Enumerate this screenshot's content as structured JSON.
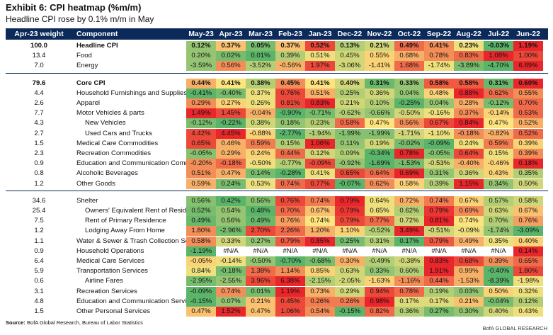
{
  "exhibit_title": "Exhibit 6: CPI heatmap (%m/m)",
  "subtitle": "Headline CPI rose by 0.1% m/m in May",
  "source_label": "Source:",
  "source_text": "BofA Global Research, Bureau of Labor Statistics",
  "brand": "BofA GLOBAL RESEARCH",
  "colors": {
    "header_bg": "#0b2a5a",
    "red": "#e8262b",
    "yellow": "#fde47f",
    "green": "#5ab46a"
  },
  "chart_data": {
    "type": "heatmap",
    "title": "CPI heatmap (%m/m)",
    "weight_header": "Apr-23 weight",
    "component_header": "Component",
    "columns": [
      "May-23",
      "Apr-23",
      "Mar-23",
      "Feb-23",
      "Jan-23",
      "Dec-22",
      "Nov-22",
      "Oct-22",
      "Sep-22",
      "Aug-22",
      "Jul-22",
      "Jun-22"
    ],
    "rows": [
      {
        "weight": "100.0",
        "name": "Headline CPI",
        "bold": true,
        "indent": 0,
        "values": [
          "0.12%",
          "0.37%",
          "0.05%",
          "0.37%",
          "0.52%",
          "0.13%",
          "0.21%",
          "0.49%",
          "0.41%",
          "0.23%",
          "-0.03%",
          "1.19%"
        ]
      },
      {
        "weight": "13.4",
        "name": "Food",
        "bold": false,
        "indent": 0,
        "values": [
          "0.20%",
          "0.02%",
          "0.01%",
          "0.39%",
          "0.51%",
          "0.45%",
          "0.55%",
          "0.68%",
          "0.78%",
          "0.83%",
          "1.08%",
          "1.00%"
        ]
      },
      {
        "weight": "7.0",
        "name": "Energy",
        "bold": false,
        "indent": 0,
        "values": [
          "-3.59%",
          "0.56%",
          "-3.52%",
          "-0.56%",
          "1.97%",
          "-3.06%",
          "-1.41%",
          "1.68%",
          "-1.74%",
          "-3.89%",
          "-4.70%",
          "6.89%"
        ]
      },
      {
        "weight": "79.6",
        "name": "Core CPI",
        "bold": true,
        "indent": 0,
        "gap": true,
        "values": [
          "0.44%",
          "0.41%",
          "0.38%",
          "0.45%",
          "0.41%",
          "0.40%",
          "0.31%",
          "0.33%",
          "0.58%",
          "0.58%",
          "0.31%",
          "0.60%"
        ]
      },
      {
        "weight": "4.4",
        "name": "Household Furnishings and Supplies",
        "bold": false,
        "indent": 0,
        "values": [
          "-0.41%",
          "-0.40%",
          "0.37%",
          "0.76%",
          "0.51%",
          "0.25%",
          "0.36%",
          "0.04%",
          "0.48%",
          "0.88%",
          "0.62%",
          "0.55%"
        ]
      },
      {
        "weight": "2.6",
        "name": "Apparel",
        "bold": false,
        "indent": 0,
        "values": [
          "0.29%",
          "0.27%",
          "0.26%",
          "0.81%",
          "0.83%",
          "0.21%",
          "0.10%",
          "-0.25%",
          "0.04%",
          "0.28%",
          "-0.12%",
          "0.70%"
        ]
      },
      {
        "weight": "7.7",
        "name": "Motor Vehicles & parts",
        "bold": false,
        "indent": 0,
        "values": [
          "1.49%",
          "1.45%",
          "-0.04%",
          "-0.90%",
          "-0.71%",
          "-0.62%",
          "-0.66%",
          "-0.50%",
          "-0.16%",
          "0.37%",
          "-0.14%",
          "0.53%"
        ]
      },
      {
        "weight": "4.3",
        "name": "New Vehicles",
        "bold": false,
        "indent": 1,
        "values": [
          "-0.12%",
          "-0.22%",
          "0.38%",
          "0.18%",
          "0.23%",
          "0.58%",
          "0.47%",
          "0.56%",
          "0.67%",
          "0.84%",
          "0.47%",
          "0.52%"
        ]
      },
      {
        "weight": "2.7",
        "name": "Used Cars and Trucks",
        "bold": false,
        "indent": 1,
        "values": [
          "4.42%",
          "4.45%",
          "-0.88%",
          "-2.77%",
          "-1.94%",
          "-1.99%",
          "-1.99%",
          "-1.71%",
          "-1.10%",
          "-0.18%",
          "-0.82%",
          "0.52%"
        ]
      },
      {
        "weight": "1.5",
        "name": "Medical Care Commodities",
        "bold": false,
        "indent": 0,
        "values": [
          "0.65%",
          "0.46%",
          "0.59%",
          "0.15%",
          "1.06%",
          "0.11%",
          "0.19%",
          "-0.02%",
          "-0.09%",
          "0.24%",
          "0.59%",
          "0.39%"
        ]
      },
      {
        "weight": "2.3",
        "name": "Recreation Commodities",
        "bold": false,
        "indent": 0,
        "values": [
          "-0.05%",
          "0.29%",
          "0.24%",
          "0.44%",
          "0.12%",
          "0.09%",
          "-0.34%",
          "0.78%",
          "-0.05%",
          "0.64%",
          "0.15%",
          "0.39%"
        ]
      },
      {
        "weight": "0.9",
        "name": "Education and Communication Commodities",
        "bold": false,
        "indent": 0,
        "values": [
          "-0.20%",
          "-0.18%",
          "-0.50%",
          "-0.77%",
          "-0.09%",
          "-0.92%",
          "-1.69%",
          "-1.53%",
          "-0.53%",
          "-0.40%",
          "-0.46%",
          "0.18%"
        ]
      },
      {
        "weight": "0.8",
        "name": "Alcoholic Beverages",
        "bold": false,
        "indent": 0,
        "values": [
          "0.51%",
          "0.47%",
          "0.14%",
          "-0.28%",
          "0.41%",
          "0.65%",
          "0.64%",
          "0.69%",
          "0.31%",
          "0.36%",
          "0.43%",
          "0.35%"
        ]
      },
      {
        "weight": "1.2",
        "name": "Other Goods",
        "bold": false,
        "indent": 0,
        "values": [
          "0.59%",
          "0.24%",
          "0.53%",
          "0.74%",
          "0.77%",
          "-0.07%",
          "0.62%",
          "0.58%",
          "0.39%",
          "1.15%",
          "0.34%",
          "0.50%"
        ]
      },
      {
        "weight": "34.6",
        "name": "Shelter",
        "bold": false,
        "indent": 0,
        "gap": true,
        "values": [
          "0.56%",
          "0.42%",
          "0.56%",
          "0.76%",
          "0.74%",
          "0.79%",
          "0.64%",
          "0.72%",
          "0.74%",
          "0.67%",
          "0.57%",
          "0.58%"
        ]
      },
      {
        "weight": "25.4",
        "name": "Owners' Equivalent Rent of Residences",
        "bold": false,
        "indent": 1,
        "values": [
          "0.52%",
          "0.54%",
          "0.48%",
          "0.70%",
          "0.67%",
          "0.79%",
          "0.65%",
          "0.62%",
          "0.79%",
          "0.69%",
          "0.63%",
          "0.67%"
        ]
      },
      {
        "weight": "7.5",
        "name": "Rent of Primary Residence",
        "bold": false,
        "indent": 1,
        "values": [
          "0.49%",
          "0.56%",
          "0.49%",
          "0.76%",
          "0.74%",
          "0.79%",
          "0.77%",
          "0.72%",
          "0.81%",
          "0.74%",
          "0.70%",
          "0.76%"
        ]
      },
      {
        "weight": "1.2",
        "name": "Lodging Away From Home",
        "bold": false,
        "indent": 1,
        "values": [
          "1.80%",
          "-2.96%",
          "2.70%",
          "2.26%",
          "1.20%",
          "1.10%",
          "-0.52%",
          "3.49%",
          "-0.51%",
          "-0.09%",
          "-1.74%",
          "-3.09%"
        ]
      },
      {
        "weight": "1.1",
        "name": "Water & Sewer & Trash Collection Services",
        "bold": false,
        "indent": 0,
        "values": [
          "0.58%",
          "0.33%",
          "0.27%",
          "0.79%",
          "0.85%",
          "0.25%",
          "0.31%",
          "0.17%",
          "0.79%",
          "0.49%",
          "0.35%",
          "0.40%"
        ]
      },
      {
        "weight": "0.9",
        "name": "Household Operations",
        "bold": false,
        "indent": 0,
        "values": [
          "-1.19%",
          "#N/A",
          "#N/A",
          "#N/A",
          "#N/A",
          "#N/A",
          "#N/A",
          "#N/A",
          "#N/A",
          "#N/A",
          "#N/A",
          "0.14%"
        ]
      },
      {
        "weight": "6.4",
        "name": "Medical Care Services",
        "bold": false,
        "indent": 0,
        "values": [
          "-0.05%",
          "-0.14%",
          "-0.50%",
          "-0.70%",
          "-0.68%",
          "0.30%",
          "-0.49%",
          "-0.38%",
          "0.83%",
          "0.68%",
          "0.39%",
          "0.65%"
        ]
      },
      {
        "weight": "5.9",
        "name": "Transportation Services",
        "bold": false,
        "indent": 0,
        "values": [
          "0.84%",
          "-0.18%",
          "1.38%",
          "1.14%",
          "0.85%",
          "0.63%",
          "0.33%",
          "0.60%",
          "1.91%",
          "0.99%",
          "-0.40%",
          "1.80%"
        ]
      },
      {
        "weight": "0.6",
        "name": "Airline Fares",
        "bold": false,
        "indent": 1,
        "values": [
          "-2.95%",
          "-2.55%",
          "3.96%",
          "6.38%",
          "-2.15%",
          "-2.05%",
          "-1.63%",
          "-1.16%",
          "0.44%",
          "-1.53%",
          "-8.39%",
          "-1.98%"
        ]
      },
      {
        "weight": "3.1",
        "name": "Recreation Services",
        "bold": false,
        "indent": 0,
        "values": [
          "-0.09%",
          "0.74%",
          "0.01%",
          "1.19%",
          "0.73%",
          "0.29%",
          "0.94%",
          "0.78%",
          "0.19%",
          "0.03%",
          "0.50%",
          "0.32%"
        ]
      },
      {
        "weight": "4.8",
        "name": "Education and Communication Services",
        "bold": false,
        "indent": 0,
        "values": [
          "-0.15%",
          "0.07%",
          "0.21%",
          "0.45%",
          "0.26%",
          "0.26%",
          "0.98%",
          "0.17%",
          "0.17%",
          "0.21%",
          "-0.04%",
          "0.12%"
        ]
      },
      {
        "weight": "1.5",
        "name": "Other Personal Services",
        "bold": false,
        "indent": 0,
        "values": [
          "0.47%",
          "1.52%",
          "0.47%",
          "1.06%",
          "0.54%",
          "-0.15%",
          "0.82%",
          "0.36%",
          "0.27%",
          "0.30%",
          "0.40%",
          "0.43%"
        ]
      }
    ]
  }
}
